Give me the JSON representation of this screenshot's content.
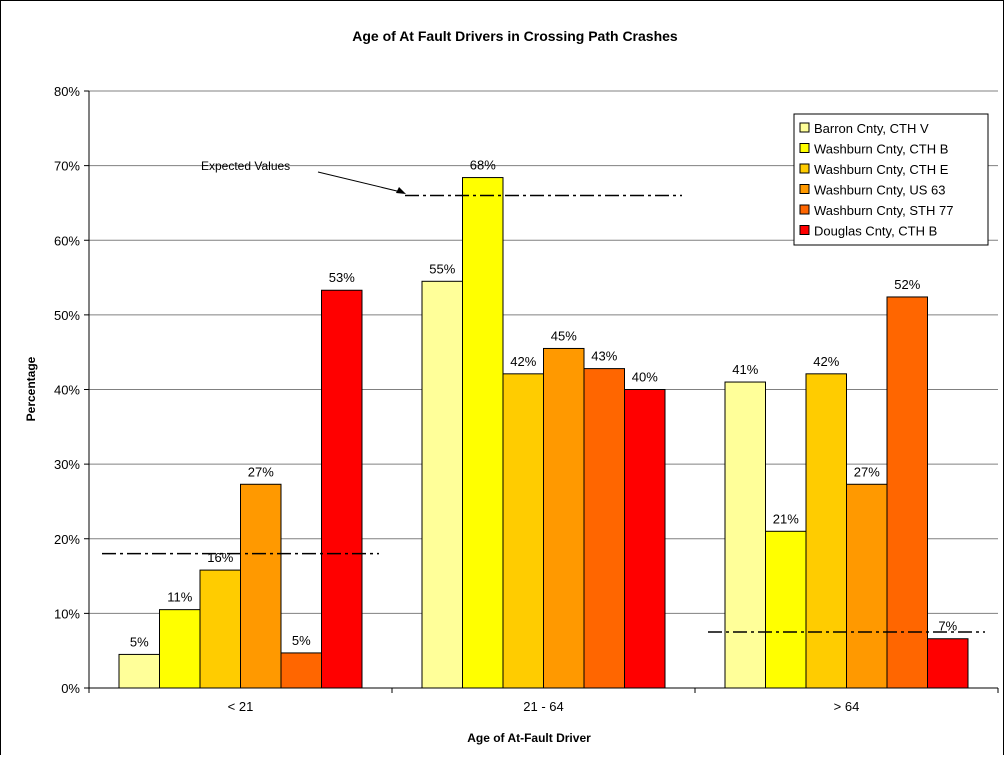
{
  "chart_data": {
    "type": "bar",
    "title": "Age of At Fault Drivers in Crossing Path Crashes",
    "xlabel": "Age of At-Fault Driver",
    "ylabel": "Percentage",
    "categories": [
      "< 21",
      "21 - 64",
      "> 64"
    ],
    "ylim": [
      0,
      80
    ],
    "yticks": [
      "0%",
      "10%",
      "20%",
      "30%",
      "40%",
      "50%",
      "60%",
      "70%",
      "80%"
    ],
    "grid": true,
    "legend_position": "top-right",
    "series": [
      {
        "name": "Barron Cnty, CTH V",
        "color": "#FFFF99",
        "values": [
          4.5,
          54.5,
          41
        ],
        "labels": [
          "5%",
          "55%",
          "41%"
        ]
      },
      {
        "name": "Washburn Cnty, CTH B",
        "color": "#FFFF00",
        "values": [
          10.5,
          68.4,
          21
        ],
        "labels": [
          "11%",
          "68%",
          "21%"
        ]
      },
      {
        "name": "Washburn Cnty, CTH E",
        "color": "#FFCC00",
        "values": [
          15.8,
          42.1,
          42.1
        ],
        "labels": [
          "16%",
          "42%",
          "42%"
        ]
      },
      {
        "name": "Washburn Cnty, US 63",
        "color": "#FF9900",
        "values": [
          27.3,
          45.5,
          27.3
        ],
        "labels": [
          "27%",
          "45%",
          "27%"
        ]
      },
      {
        "name": "Washburn Cnty, STH 77",
        "color": "#FF6600",
        "values": [
          4.7,
          42.8,
          52.4
        ],
        "labels": [
          "5%",
          "43%",
          "52%"
        ]
      },
      {
        "name": "Douglas Cnty, CTH B",
        "color": "#FF0000",
        "values": [
          53.3,
          40,
          6.6
        ],
        "labels": [
          "53%",
          "40%",
          "7%"
        ]
      }
    ],
    "expected_values": {
      "label": "Expected Values",
      "values": [
        18,
        66,
        7.5
      ]
    }
  }
}
